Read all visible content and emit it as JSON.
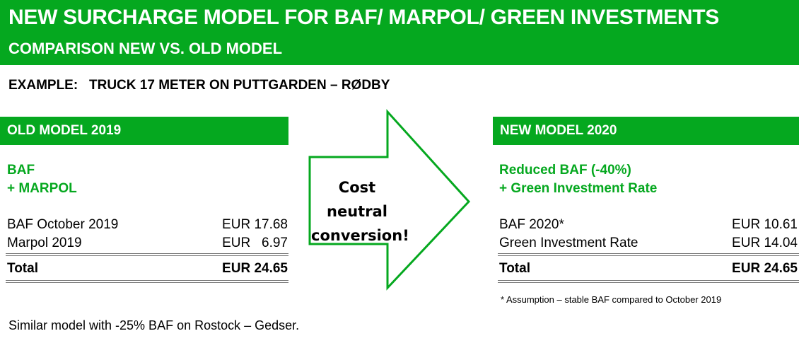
{
  "header": {
    "title": "NEW SURCHARGE MODEL FOR BAF/ MARPOL/ GREEN INVESTMENTS",
    "subtitle": "COMPARISON NEW VS. OLD MODEL"
  },
  "example": "EXAMPLE:   TRUCK 17 METER ON PUTTGARDEN – RØDBY",
  "old": {
    "heading": "OLD MODEL 2019",
    "green1": "BAF",
    "green2": "+ MARPOL",
    "rows": [
      {
        "label": "BAF October 2019",
        "value": "EUR 17.68"
      },
      {
        "label": "Marpol 2019",
        "value": "EUR   6.97"
      }
    ],
    "total": {
      "label": "Total",
      "value": "EUR 24.65"
    }
  },
  "arrow": {
    "line1": "Cost neutral",
    "line2": "conversion!"
  },
  "new": {
    "heading": "NEW MODEL 2020",
    "green1": "Reduced BAF (-40%)",
    "green2": "+ Green Investment Rate",
    "rows": [
      {
        "label": "BAF 2020*",
        "value": "EUR 10.61"
      },
      {
        "label": "Green Investment Rate",
        "value": "EUR 14.04"
      }
    ],
    "total": {
      "label": "Total",
      "value": "EUR 24.65"
    },
    "footnote": "* Assumption – stable BAF compared to October 2019"
  },
  "bottom_note": "Similar model with -25% BAF on Rostock – Gedser.",
  "colors": {
    "brand_green": "#05a81f"
  }
}
